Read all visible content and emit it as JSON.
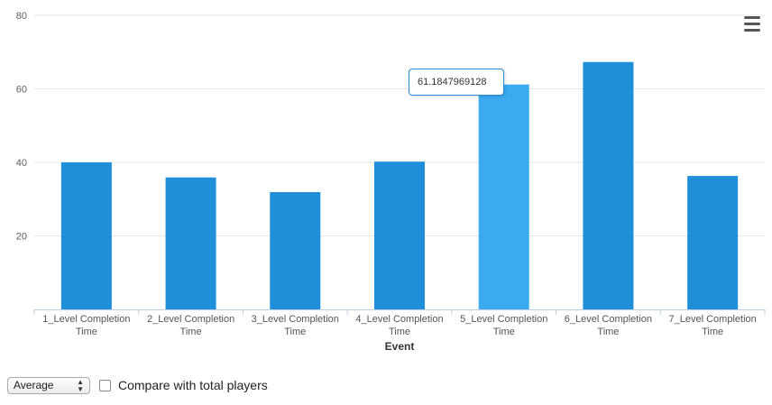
{
  "chart_data": {
    "type": "bar",
    "categories": [
      [
        "1_Level Completion",
        "Time"
      ],
      [
        "2_Level Completion",
        "Time"
      ],
      [
        "3_Level Completion",
        "Time"
      ],
      [
        "4_Level Completion",
        "Time"
      ],
      [
        "5_Level Completion",
        "Time"
      ],
      [
        "6_Level Completion",
        "Time"
      ],
      [
        "7_Level Completion",
        "Time"
      ]
    ],
    "values": [
      40.0,
      35.9,
      31.9,
      40.2,
      61.1847969128,
      67.3,
      36.3
    ],
    "xlabel": "Event",
    "ylabel": "",
    "ylim": [
      0,
      80
    ],
    "yticks": [
      20,
      40,
      60,
      80
    ],
    "grid": true,
    "bar_color": "#1f8fd9",
    "highlight_color": "#3aabf0",
    "highlight_index": 4
  },
  "tooltip": {
    "value": "61.1847969128"
  },
  "menu": {
    "icon": "hamburger-menu-icon"
  },
  "controls": {
    "aggregate_select": "Average",
    "compare_label": "Compare with total players",
    "compare_checked": false
  }
}
